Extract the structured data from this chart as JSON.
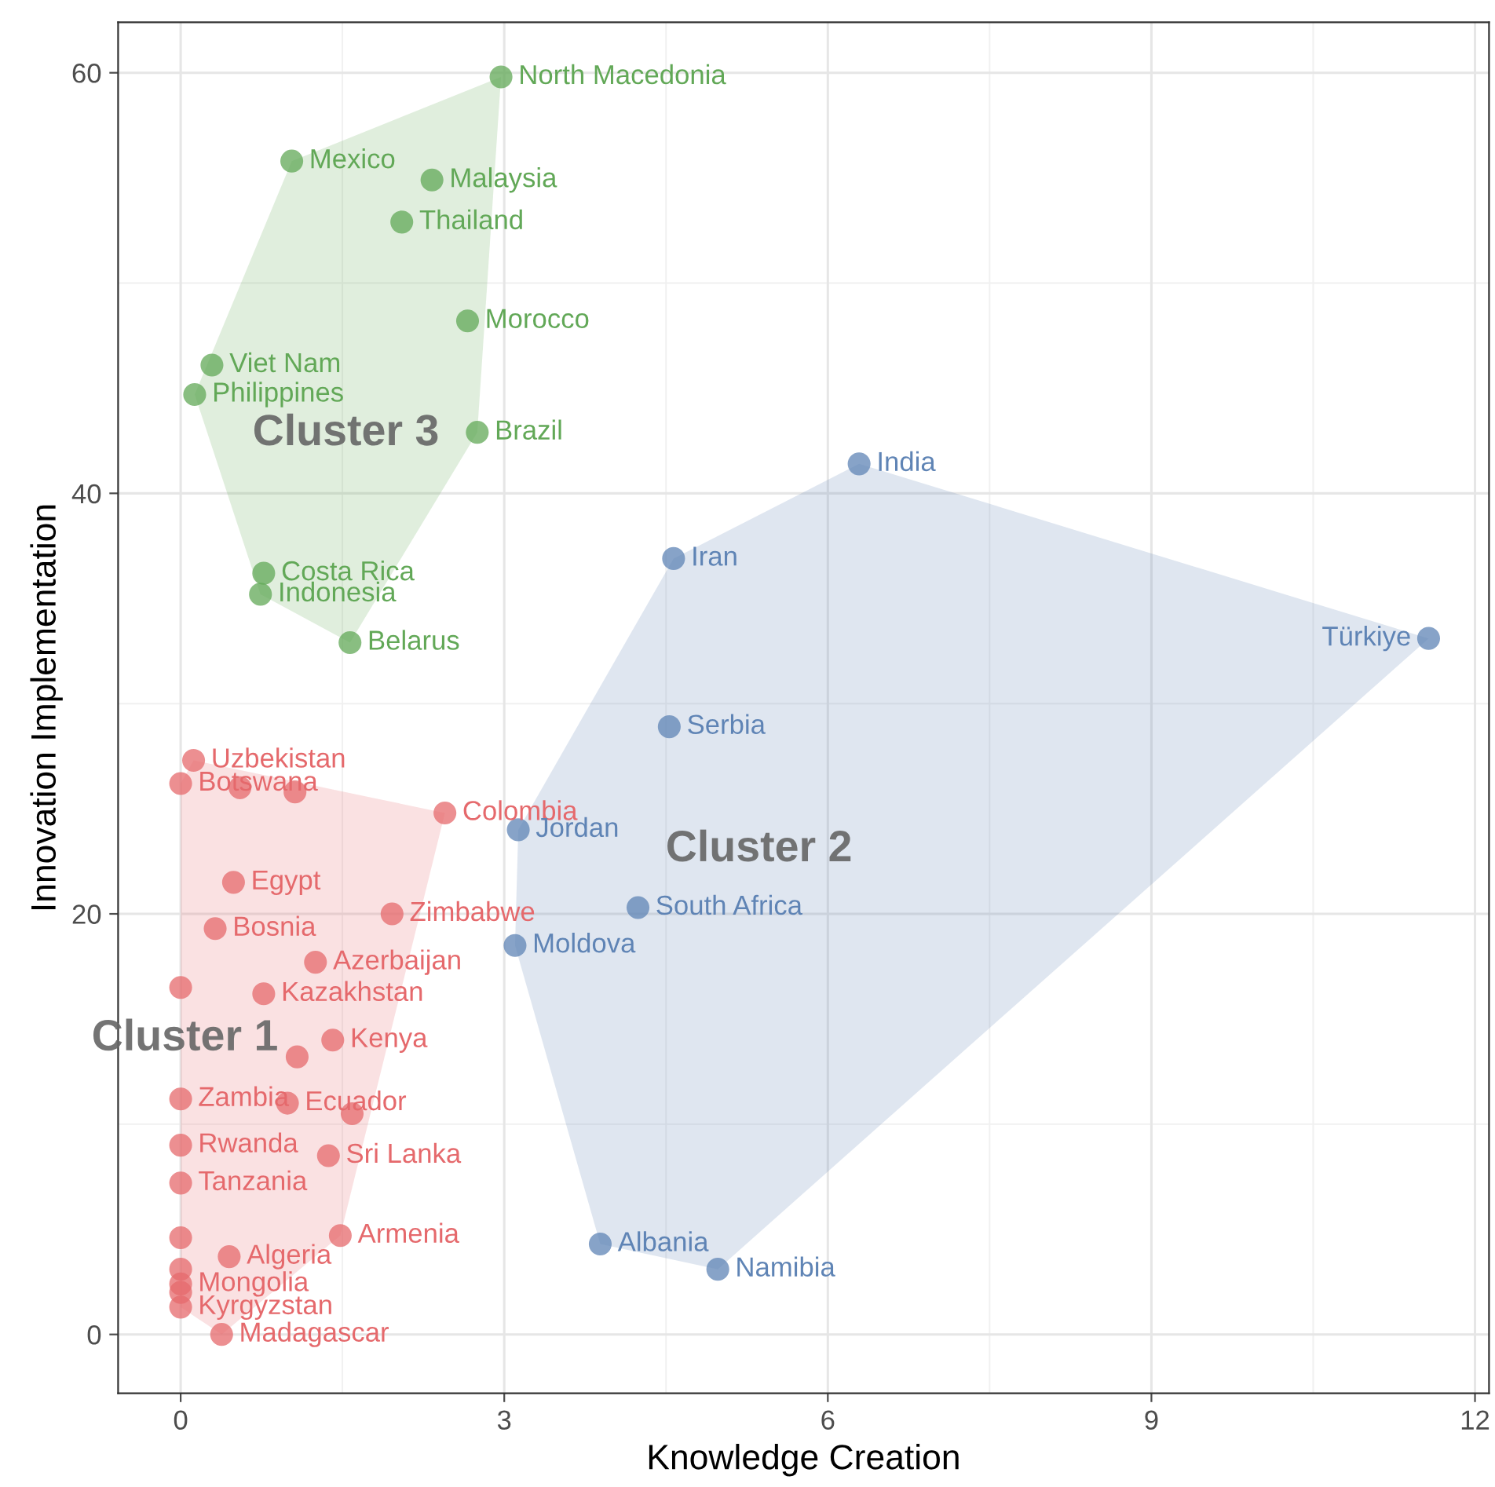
{
  "chart_data": {
    "type": "scatter",
    "xlabel": "Knowledge Creation",
    "ylabel": "Innovation Implementation",
    "xlim": [
      -0.58,
      12.13
    ],
    "ylim": [
      -2.8,
      62.4
    ],
    "xticks": [
      0,
      3,
      6,
      9,
      12
    ],
    "yticks": [
      0,
      20,
      40,
      60
    ],
    "grid": true,
    "marker": "circle",
    "series": [
      {
        "color": "#e5696c",
        "x": [
          0.12,
          0,
          0.55,
          1.06,
          2.45,
          0.49,
          1.96,
          0.32,
          1.25,
          0,
          0.77,
          1.41,
          1.08,
          0,
          0.99,
          1.59,
          0,
          1.37,
          0,
          0,
          1.48,
          0.45,
          0,
          0,
          0,
          0,
          0.38
        ],
        "values": [
          27.3,
          26.2,
          26.0,
          25.8,
          24.8,
          21.5,
          20.0,
          19.3,
          17.7,
          16.5,
          16.2,
          14.0,
          13.2,
          11.2,
          11.0,
          10.5,
          9.0,
          8.5,
          7.2,
          4.6,
          4.7,
          3.7,
          3.1,
          2.4,
          2.0,
          1.3,
          0.0
        ],
        "value_labels": [
          "Uzbekistan",
          "Botswana",
          null,
          null,
          "Colombia",
          "Egypt",
          "Zimbabwe",
          "Bosnia",
          "Azerbaijan",
          null,
          "Kazakhstan",
          "Kenya",
          null,
          "Zambia",
          "Ecuador",
          null,
          "Rwanda",
          "Sri Lanka",
          "Tanzania",
          null,
          "Armenia",
          "Algeria",
          null,
          "Mongolia",
          null,
          "Kyrgyzstan",
          "Madagascar"
        ]
      },
      {
        "color": "#5f84b5",
        "x": [
          6.29,
          4.57,
          11.57,
          4.53,
          3.13,
          4.24,
          3.1,
          3.89,
          4.98
        ],
        "values": [
          41.4,
          36.9,
          33.1,
          28.9,
          24.0,
          20.3,
          18.5,
          4.3,
          3.1
        ],
        "value_labels": [
          "India",
          "Iran",
          "Türkiye",
          "Serbia",
          "Jordan",
          "South Africa",
          "Moldova",
          "Albania",
          "Namibia"
        ]
      },
      {
        "color": "#62a857",
        "x": [
          2.97,
          1.03,
          2.33,
          2.05,
          2.66,
          0.29,
          0.13,
          2.75,
          0.77,
          0.74,
          1.57
        ],
        "values": [
          59.8,
          55.8,
          54.9,
          52.9,
          48.2,
          46.1,
          44.7,
          42.9,
          36.2,
          35.2,
          32.9
        ],
        "value_labels": [
          "North Macedonia",
          "Mexico",
          "Malaysia",
          "Thailand",
          "Morocco",
          "Viet Nam",
          "Philippines",
          "Brazil",
          "Costa Rica",
          "Indonesia",
          "Belarus"
        ]
      }
    ],
    "annotations": [
      "Cluster 1",
      "Cluster 2",
      "Cluster 3"
    ]
  }
}
